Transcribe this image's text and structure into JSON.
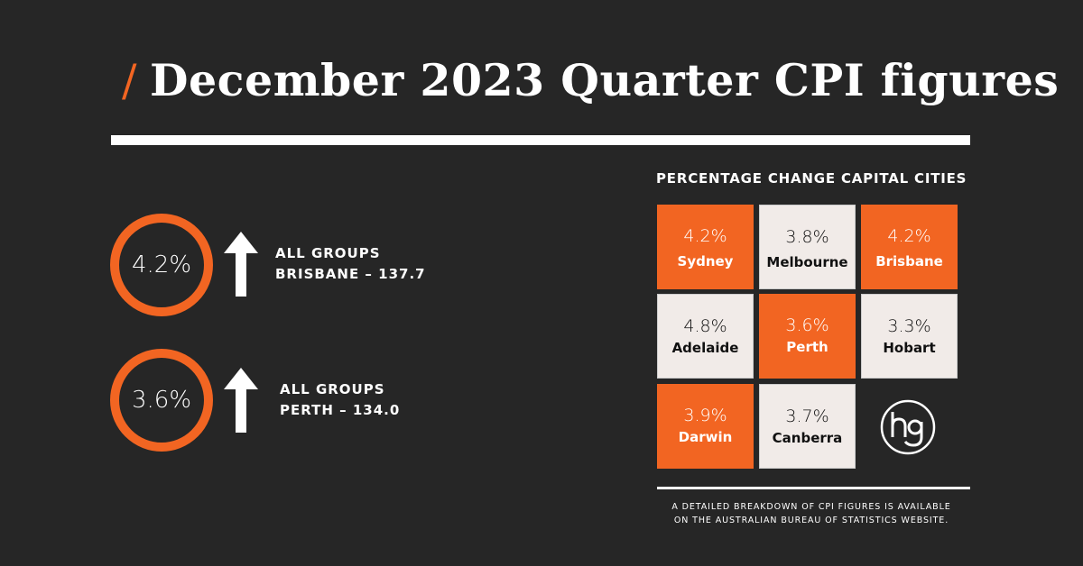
{
  "title": {
    "slash": "/",
    "text": "December 2023 Quarter CPI figures"
  },
  "accent_color": "#f26522",
  "highlights": [
    {
      "value": "4.2%",
      "direction": "up",
      "icon": "arrow-up-icon",
      "line1": "ALL GROUPS",
      "line2": "BRISBANE – 137.7"
    },
    {
      "value": "3.6%",
      "direction": "up",
      "icon": "arrow-up-icon",
      "line1": "ALL GROUPS",
      "line2": "PERTH – 134.0"
    }
  ],
  "grid": {
    "heading": "PERCENTAGE CHANGE CAPITAL CITIES",
    "cities": [
      {
        "value": "4.2%",
        "city": "Sydney",
        "color": "orange"
      },
      {
        "value": "3.8%",
        "city": "Melbourne",
        "color": "light"
      },
      {
        "value": "4.2%",
        "city": "Brisbane",
        "color": "orange"
      },
      {
        "value": "4.8%",
        "city": "Adelaide",
        "color": "light"
      },
      {
        "value": "3.6%",
        "city": "Perth",
        "color": "orange"
      },
      {
        "value": "3.3%",
        "city": "Hobart",
        "color": "light"
      },
      {
        "value": "3.9%",
        "city": "Darwin",
        "color": "orange"
      },
      {
        "value": "3.7%",
        "city": "Canberra",
        "color": "light"
      }
    ]
  },
  "logo": "hg",
  "footnote": {
    "line1": "A DETAILED BREAKDOWN OF CPI FIGURES IS AVAILABLE",
    "line2": "ON THE AUSTRALIAN BUREAU OF STATISTICS WEBSITE."
  }
}
